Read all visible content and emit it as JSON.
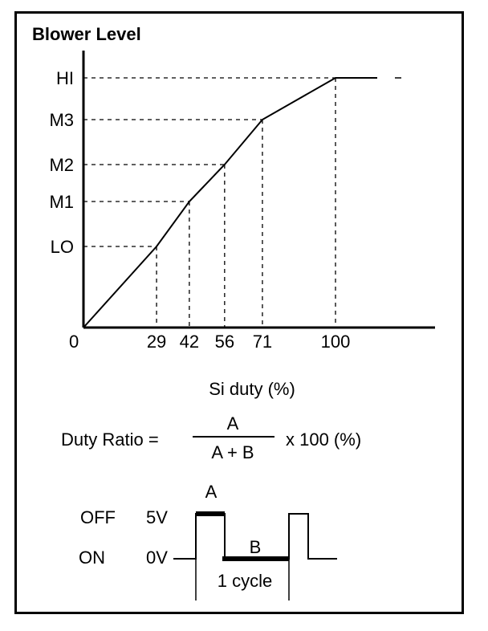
{
  "title": "Blower Level",
  "chart_data": {
    "type": "line",
    "title": "Blower Level",
    "xlabel": "Si duty (%)",
    "ylabel": "",
    "origin_label": "0",
    "x_ticks": [
      29,
      42,
      56,
      71,
      100
    ],
    "levels": [
      "LO",
      "M1",
      "M2",
      "M3",
      "HI"
    ],
    "points": [
      {
        "x": 0,
        "level": "0"
      },
      {
        "x": 29,
        "level": "LO"
      },
      {
        "x": 42,
        "level": "M1"
      },
      {
        "x": 56,
        "level": "M2"
      },
      {
        "x": 71,
        "level": "M3"
      },
      {
        "x": 100,
        "level": "HI"
      }
    ]
  },
  "formula": {
    "lhs": "Duty Ratio =",
    "numerator": "A",
    "denominator": "A + B",
    "rhs": "x 100 (%)"
  },
  "waveform": {
    "off_label": "OFF",
    "on_label": "ON",
    "high_voltage": "5V",
    "low_voltage": "0V",
    "a_label": "A",
    "b_label": "B",
    "cycle_label": "1 cycle"
  }
}
